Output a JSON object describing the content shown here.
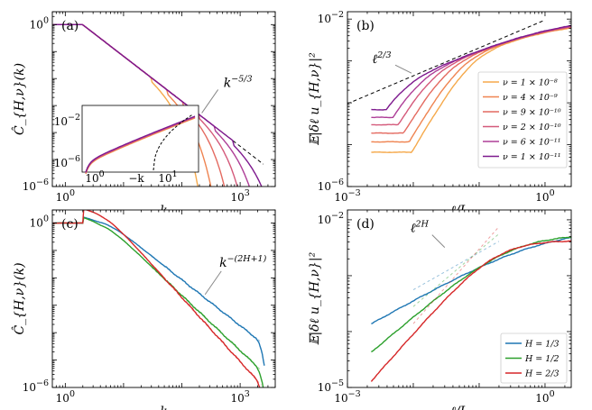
{
  "chart_data": [
    {
      "type": "line",
      "panel_label": "(a)",
      "ylabel": "Ĉ_{H,ν}(k)",
      "xlabel": "k",
      "x_scale": "log",
      "y_scale": "log",
      "xlim": [
        0.6,
        4000
      ],
      "ylim": [
        1e-06,
        3
      ],
      "x_ticks": [
        {
          "value": 1,
          "label": "10",
          "exp": "0"
        },
        {
          "value": 1000,
          "label": "10",
          "exp": "3"
        }
      ],
      "y_ticks": [
        {
          "value": 1,
          "label": "10",
          "exp": "0"
        },
        {
          "value": 1e-06,
          "label": "10",
          "exp": "−6"
        }
      ],
      "annotation": {
        "text": "k",
        "exp": "−5/3"
      },
      "reference_line": {
        "style": "dashed",
        "slope": -1.6667,
        "x": [
          3,
          2500
        ],
        "color": "#000000"
      },
      "series": [
        {
          "name": "ν=1×10⁻⁸",
          "color": "#f5a94b",
          "cutoff_k": 60
        },
        {
          "name": "ν=4×10⁻⁹",
          "color": "#ef8451",
          "cutoff_k": 110
        },
        {
          "name": "ν=9×10⁻¹⁰",
          "color": "#e46a60",
          "cutoff_k": 210
        },
        {
          "name": "ν=2×10⁻¹⁰",
          "color": "#d4597a",
          "cutoff_k": 400
        },
        {
          "name": "ν=6×10⁻¹¹",
          "color": "#ae3e97",
          "cutoff_k": 750
        },
        {
          "name": "ν=1×10⁻¹¹",
          "color": "#7e1a8e",
          "cutoff_k": 1500
        }
      ],
      "inset": {
        "x_ticks": [
          {
            "label": "10",
            "exp": "0"
          },
          {
            "label": "−k",
            "exp": ""
          },
          {
            "label": "10",
            "exp": "1"
          }
        ],
        "y_ticks": [
          {
            "label": "10",
            "exp": "−2"
          },
          {
            "label": "10",
            "exp": "−6"
          }
        ]
      }
    },
    {
      "type": "line",
      "panel_label": "(b)",
      "ylabel": "𝔼|δℓ u_{H,ν}|²",
      "xlabel": "ℓ/L",
      "x_scale": "log",
      "y_scale": "log",
      "xlim": [
        0.001,
        2.5
      ],
      "ylim": [
        1e-06,
        0.015
      ],
      "x_ticks": [
        {
          "value": 0.001,
          "label": "10",
          "exp": "−3"
        },
        {
          "value": 1,
          "label": "10",
          "exp": "0"
        }
      ],
      "y_ticks": [
        {
          "value": 0.01,
          "label": "10",
          "exp": "−2"
        },
        {
          "value": 1e-06,
          "label": "10",
          "exp": "−6"
        }
      ],
      "annotation": {
        "text": "ℓ",
        "exp": "2/3"
      },
      "reference_line": {
        "style": "dashed",
        "slope": 0.6667,
        "x": [
          0.001,
          1
        ],
        "color": "#000000"
      },
      "legend": {
        "position": "right",
        "entries": [
          "ν = 1 × 10⁻⁸",
          "ν = 4 × 10⁻⁹",
          "ν = 9 × 10⁻¹⁰",
          "ν = 2 × 10⁻¹⁰",
          "ν = 6 × 10⁻¹¹",
          "ν = 1 × 10⁻¹¹"
        ]
      },
      "series": [
        {
          "name": "ν = 1 × 10⁻⁸",
          "color": "#f5a94b",
          "corner_lscale": 0.075,
          "start_y": 2.2e-05
        },
        {
          "name": "ν = 4 × 10⁻⁹",
          "color": "#ef8451",
          "corner_lscale": 0.05,
          "start_y": 3.9e-05
        },
        {
          "name": "ν = 9 × 10⁻¹⁰",
          "color": "#e46a60",
          "corner_lscale": 0.03,
          "start_y": 6.3e-05
        },
        {
          "name": "ν = 2 × 10⁻¹⁰",
          "color": "#d4597a",
          "corner_lscale": 0.018,
          "start_y": 0.0001
        },
        {
          "name": "ν = 6 × 10⁻¹¹",
          "color": "#ae3e97",
          "corner_lscale": 0.011,
          "start_y": 0.00015
        },
        {
          "name": "ν = 1 × 10⁻¹¹",
          "color": "#7e1a8e",
          "corner_lscale": 0.006,
          "start_y": 0.00023
        }
      ]
    },
    {
      "type": "line",
      "panel_label": "(c)",
      "ylabel": "Ĉ_{H,ν}(k)",
      "xlabel": "k",
      "x_scale": "log",
      "y_scale": "log",
      "xlim": [
        0.6,
        4000
      ],
      "ylim": [
        1e-06,
        3
      ],
      "x_ticks": [
        {
          "value": 1,
          "label": "10",
          "exp": "0"
        },
        {
          "value": 1000,
          "label": "10",
          "exp": "3"
        }
      ],
      "y_ticks": [
        {
          "value": 1,
          "label": "10",
          "exp": "0"
        },
        {
          "value": 1e-06,
          "label": "10",
          "exp": "−6"
        }
      ],
      "annotation": {
        "text": "k",
        "exp": "−(2H+1)"
      },
      "series": [
        {
          "name": "H = 1/3",
          "color": "#1f77b4",
          "slope": -1.6667,
          "y_at_1000": 0.00018
        },
        {
          "name": "H = 1/2",
          "color": "#2ca02c",
          "slope": -2.0,
          "y_at_1000": 2.2e-05
        },
        {
          "name": "H = 2/3",
          "color": "#d62728",
          "slope": -2.3333,
          "y_at_1000": 8.5e-06
        }
      ]
    },
    {
      "type": "line",
      "panel_label": "(d)",
      "ylabel": "𝔼|δℓ u_{H,ν}|²",
      "xlabel": "ℓ/L",
      "x_scale": "log",
      "y_scale": "log",
      "xlim": [
        0.001,
        2.5
      ],
      "ylim": [
        1e-05,
        0.015
      ],
      "x_ticks": [
        {
          "value": 0.001,
          "label": "10",
          "exp": "−3"
        },
        {
          "value": 1,
          "label": "10",
          "exp": "0"
        }
      ],
      "y_ticks": [
        {
          "value": 0.01,
          "label": "10",
          "exp": "−2"
        },
        {
          "value": 1e-05,
          "label": "10",
          "exp": "−5"
        }
      ],
      "annotation": {
        "text": "ℓ",
        "exp": "2H"
      },
      "legend": {
        "position": "bottom-right",
        "entries": [
          "H = 1/3",
          "H = 1/2",
          "H = 2/3"
        ]
      },
      "series": [
        {
          "name": "H = 1/3",
          "color": "#1f77b4",
          "slope": 0.6667,
          "start_y": 0.00014,
          "plateau_y": 0.0071
        },
        {
          "name": "H = 1/2",
          "color": "#2ca02c",
          "slope": 1.0,
          "start_y": 4.3e-05,
          "plateau_y": 0.0055
        },
        {
          "name": "H = 2/3",
          "color": "#d62728",
          "slope": 1.3333,
          "start_y": 1.3e-05,
          "plateau_y": 0.0043
        }
      ]
    }
  ]
}
